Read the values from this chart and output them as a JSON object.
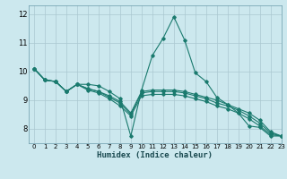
{
  "bg_color": "#cce8ee",
  "grid_color": "#aac8d0",
  "line_color": "#1a7a6e",
  "xlabel": "Humidex (Indice chaleur)",
  "xlim": [
    -0.5,
    23
  ],
  "ylim": [
    7.5,
    12.3
  ],
  "xticks": [
    0,
    1,
    2,
    3,
    4,
    5,
    6,
    7,
    8,
    9,
    10,
    11,
    12,
    13,
    14,
    15,
    16,
    17,
    18,
    19,
    20,
    21,
    22,
    23
  ],
  "yticks": [
    8,
    9,
    10,
    11,
    12
  ],
  "series": [
    [
      10.1,
      9.7,
      9.65,
      9.3,
      9.55,
      9.55,
      9.5,
      9.3,
      9.05,
      7.75,
      9.35,
      10.55,
      11.15,
      11.9,
      11.1,
      9.95,
      9.65,
      9.1,
      8.85,
      8.55,
      8.1,
      8.05,
      7.75,
      7.75
    ],
    [
      10.1,
      9.7,
      9.65,
      9.3,
      9.55,
      9.4,
      9.3,
      9.15,
      8.95,
      8.55,
      9.3,
      9.35,
      9.35,
      9.35,
      9.3,
      9.2,
      9.1,
      9.0,
      8.85,
      8.7,
      8.55,
      8.3,
      7.9,
      7.75
    ],
    [
      10.1,
      9.7,
      9.65,
      9.3,
      9.55,
      9.4,
      9.3,
      9.1,
      8.9,
      8.5,
      9.25,
      9.3,
      9.3,
      9.3,
      9.25,
      9.15,
      9.05,
      8.9,
      8.8,
      8.65,
      8.45,
      8.2,
      7.85,
      7.75
    ],
    [
      10.1,
      9.7,
      9.65,
      9.3,
      9.55,
      9.35,
      9.25,
      9.05,
      8.8,
      8.45,
      9.15,
      9.2,
      9.2,
      9.2,
      9.15,
      9.05,
      8.95,
      8.8,
      8.7,
      8.55,
      8.35,
      8.1,
      7.8,
      7.75
    ]
  ]
}
